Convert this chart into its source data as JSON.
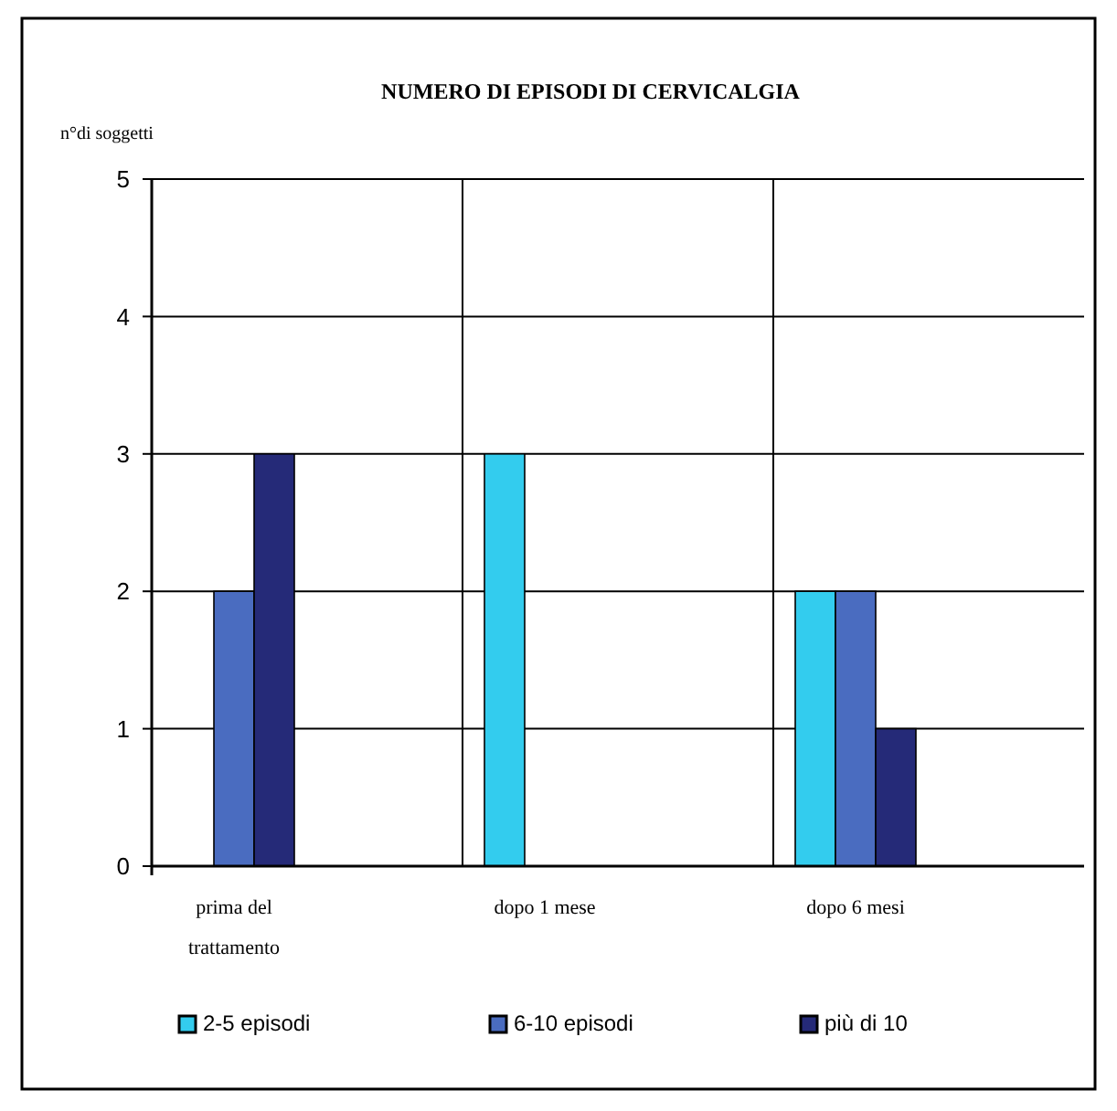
{
  "chart_data": {
    "type": "bar",
    "title": "NUMERO DI EPISODI DI CERVICALGIA",
    "ylabel": "n°di soggetti",
    "categories": [
      "prima del trattamento",
      "dopo 1 mese",
      "dopo 6 mesi"
    ],
    "series": [
      {
        "name": "2-5 episodi",
        "color": "#33ccee",
        "values": [
          0,
          3,
          2
        ]
      },
      {
        "name": "6-10 episodi",
        "color": "#4a6cc0",
        "values": [
          2,
          0,
          2
        ]
      },
      {
        "name": "più di 10",
        "color": "#252a78",
        "values": [
          3,
          0,
          1
        ]
      }
    ],
    "ylim": [
      0,
      5
    ],
    "yticks": [
      0,
      1,
      2,
      3,
      4,
      5
    ],
    "grid": true,
    "legend": "bottom"
  }
}
